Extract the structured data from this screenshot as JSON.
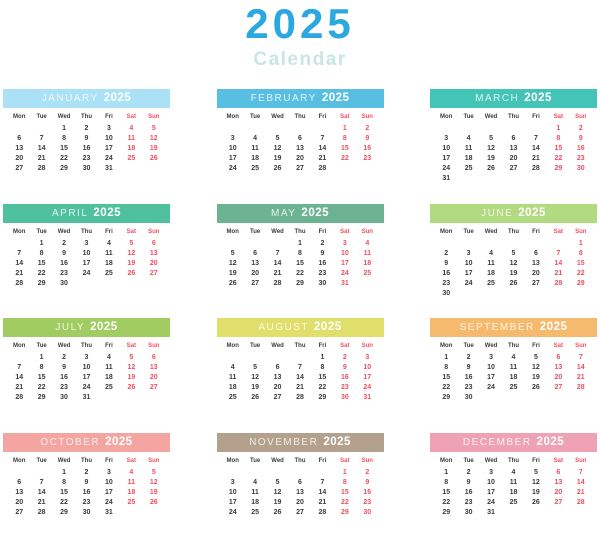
{
  "title": {
    "year": "2025",
    "subtitle": "Calendar"
  },
  "colors": {
    "title_year": "#2BA8E0",
    "title_subtitle": "#C9E6E3",
    "weekday_text": "#3B3B3B",
    "weekend_text": "#F04F5F",
    "header_text": "#FFFFFF",
    "background": "#FFFFFF"
  },
  "weekday_headers": [
    "Mon",
    "Tue",
    "Wed",
    "Thu",
    "Fri",
    "Sat",
    "Sun"
  ],
  "weekend_columns": [
    5,
    6
  ],
  "months": [
    {
      "name": "JANUARY",
      "year": "2025",
      "color": "#ABE1F6",
      "weeks": [
        [
          null,
          null,
          1,
          2,
          3,
          4,
          5
        ],
        [
          6,
          7,
          8,
          9,
          10,
          11,
          12
        ],
        [
          13,
          14,
          15,
          16,
          17,
          18,
          19
        ],
        [
          20,
          21,
          22,
          23,
          24,
          25,
          26
        ],
        [
          27,
          28,
          29,
          30,
          31,
          null,
          null
        ]
      ]
    },
    {
      "name": "FEBRUARY",
      "year": "2025",
      "color": "#58BFE3",
      "weeks": [
        [
          null,
          null,
          null,
          null,
          null,
          1,
          2
        ],
        [
          3,
          4,
          5,
          6,
          7,
          8,
          9
        ],
        [
          10,
          11,
          12,
          13,
          14,
          15,
          16
        ],
        [
          17,
          18,
          19,
          20,
          21,
          22,
          23
        ],
        [
          24,
          25,
          26,
          27,
          28,
          null,
          null
        ]
      ]
    },
    {
      "name": "MARCH",
      "year": "2025",
      "color": "#44C4B7",
      "weeks": [
        [
          null,
          null,
          null,
          null,
          null,
          1,
          2
        ],
        [
          3,
          4,
          5,
          6,
          7,
          8,
          9
        ],
        [
          10,
          11,
          12,
          13,
          14,
          15,
          16
        ],
        [
          17,
          18,
          19,
          20,
          21,
          22,
          23
        ],
        [
          24,
          25,
          26,
          27,
          28,
          29,
          30
        ],
        [
          31,
          null,
          null,
          null,
          null,
          null,
          null
        ]
      ]
    },
    {
      "name": "APRIL",
      "year": "2025",
      "color": "#4FC19D",
      "weeks": [
        [
          null,
          1,
          2,
          3,
          4,
          5,
          6
        ],
        [
          7,
          8,
          9,
          10,
          11,
          12,
          13
        ],
        [
          14,
          15,
          16,
          17,
          18,
          19,
          20
        ],
        [
          21,
          22,
          23,
          24,
          25,
          26,
          27
        ],
        [
          28,
          29,
          30,
          null,
          null,
          null,
          null
        ]
      ]
    },
    {
      "name": "MAY",
      "year": "2025",
      "color": "#6CB391",
      "weeks": [
        [
          null,
          null,
          null,
          1,
          2,
          3,
          4
        ],
        [
          5,
          6,
          7,
          8,
          9,
          10,
          11
        ],
        [
          12,
          13,
          14,
          15,
          16,
          17,
          18
        ],
        [
          19,
          20,
          21,
          22,
          23,
          24,
          25
        ],
        [
          26,
          27,
          28,
          29,
          30,
          31,
          null
        ]
      ]
    },
    {
      "name": "JUNE",
      "year": "2025",
      "color": "#B2DA80",
      "weeks": [
        [
          null,
          null,
          null,
          null,
          null,
          null,
          1
        ],
        [
          2,
          3,
          4,
          5,
          6,
          7,
          8
        ],
        [
          9,
          10,
          11,
          12,
          13,
          14,
          15
        ],
        [
          16,
          17,
          18,
          19,
          20,
          21,
          22
        ],
        [
          23,
          24,
          25,
          26,
          27,
          28,
          29
        ],
        [
          30,
          null,
          null,
          null,
          null,
          null,
          null
        ]
      ]
    },
    {
      "name": "JULY",
      "year": "2025",
      "color": "#A0CC61",
      "weeks": [
        [
          null,
          1,
          2,
          3,
          4,
          5,
          6
        ],
        [
          7,
          8,
          9,
          10,
          11,
          12,
          13
        ],
        [
          14,
          15,
          16,
          17,
          18,
          19,
          20
        ],
        [
          21,
          22,
          23,
          24,
          25,
          26,
          27
        ],
        [
          28,
          29,
          30,
          31,
          null,
          null,
          null
        ]
      ]
    },
    {
      "name": "AUGUST",
      "year": "2025",
      "color": "#E0DF6B",
      "weeks": [
        [
          null,
          null,
          null,
          null,
          1,
          2,
          3
        ],
        [
          4,
          5,
          6,
          7,
          8,
          9,
          10
        ],
        [
          11,
          12,
          13,
          14,
          15,
          16,
          17
        ],
        [
          18,
          19,
          20,
          21,
          22,
          23,
          24
        ],
        [
          25,
          26,
          27,
          28,
          29,
          30,
          31
        ]
      ]
    },
    {
      "name": "SEPTEMBER",
      "year": "2025",
      "color": "#F6BA6E",
      "weeks": [
        [
          1,
          2,
          3,
          4,
          5,
          6,
          7
        ],
        [
          8,
          9,
          10,
          11,
          12,
          13,
          14
        ],
        [
          15,
          16,
          17,
          18,
          19,
          20,
          21
        ],
        [
          22,
          23,
          24,
          25,
          26,
          27,
          28
        ],
        [
          29,
          30,
          null,
          null,
          null,
          null,
          null
        ]
      ]
    },
    {
      "name": "OCTOBER",
      "year": "2025",
      "color": "#F5A5A1",
      "weeks": [
        [
          null,
          null,
          1,
          2,
          3,
          4,
          5
        ],
        [
          6,
          7,
          8,
          9,
          10,
          11,
          12
        ],
        [
          13,
          14,
          15,
          16,
          17,
          18,
          19
        ],
        [
          20,
          21,
          22,
          23,
          24,
          25,
          26
        ],
        [
          27,
          28,
          29,
          30,
          31,
          null,
          null
        ]
      ]
    },
    {
      "name": "NOVEMBER",
      "year": "2025",
      "color": "#B3A18D",
      "weeks": [
        [
          null,
          null,
          null,
          null,
          null,
          1,
          2
        ],
        [
          3,
          4,
          5,
          6,
          7,
          8,
          9
        ],
        [
          10,
          11,
          12,
          13,
          14,
          15,
          16
        ],
        [
          17,
          18,
          19,
          20,
          21,
          22,
          23
        ],
        [
          24,
          25,
          26,
          27,
          28,
          29,
          30
        ]
      ]
    },
    {
      "name": "DECEMBER",
      "year": "2025",
      "color": "#EFA2B4",
      "weeks": [
        [
          1,
          2,
          3,
          4,
          5,
          6,
          7
        ],
        [
          8,
          9,
          10,
          11,
          12,
          13,
          14
        ],
        [
          15,
          16,
          17,
          18,
          19,
          20,
          21
        ],
        [
          22,
          23,
          24,
          25,
          26,
          27,
          28
        ],
        [
          29,
          30,
          31,
          null,
          null,
          null,
          null
        ]
      ]
    }
  ]
}
